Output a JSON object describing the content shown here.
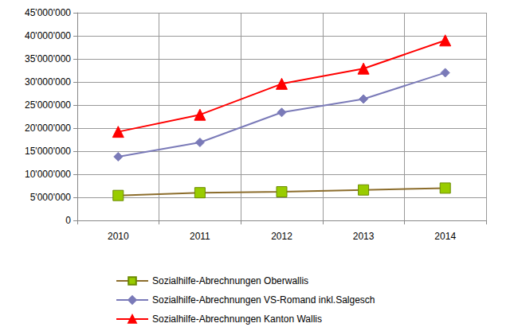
{
  "chart_data": {
    "type": "line",
    "categories": [
      "2010",
      "2011",
      "2012",
      "2013",
      "2014"
    ],
    "series": [
      {
        "name": "Sozialhilfe-Abrechnungen Oberwallis",
        "color": "#8c6d2c",
        "marker": "square",
        "values": [
          5400000,
          6000000,
          6200000,
          6600000,
          7000000
        ]
      },
      {
        "name": "Sozialhilfe-Abrechnungen VS-Romand inkl.Salgesch",
        "color": "#7a7ab8",
        "marker": "diamond",
        "values": [
          13800000,
          16900000,
          23400000,
          26300000,
          32000000
        ]
      },
      {
        "name": "Sozialhilfe-Abrechnungen Kanton Wallis",
        "color": "#ff0000",
        "marker": "triangle",
        "values": [
          19200000,
          22900000,
          29600000,
          32900000,
          39000000
        ]
      }
    ],
    "ylim": [
      0,
      45000000
    ],
    "yticks": [
      0,
      {
        "value": 5000000,
        "label": "5'000'000"
      },
      {
        "value": 10000000,
        "label": "10'000'000"
      },
      {
        "value": 15000000,
        "label": "15'000'000"
      },
      {
        "value": 20000000,
        "label": "20'000'000"
      },
      {
        "value": 25000000,
        "label": "25'000'000"
      },
      {
        "value": 30000000,
        "label": "30'000'000"
      },
      {
        "value": 35000000,
        "label": "35'000'000"
      },
      {
        "value": 40000000,
        "label": "40'000'000"
      },
      {
        "value": 45000000,
        "label": "45'000'000"
      }
    ],
    "grid": true,
    "legend": "bottom"
  }
}
